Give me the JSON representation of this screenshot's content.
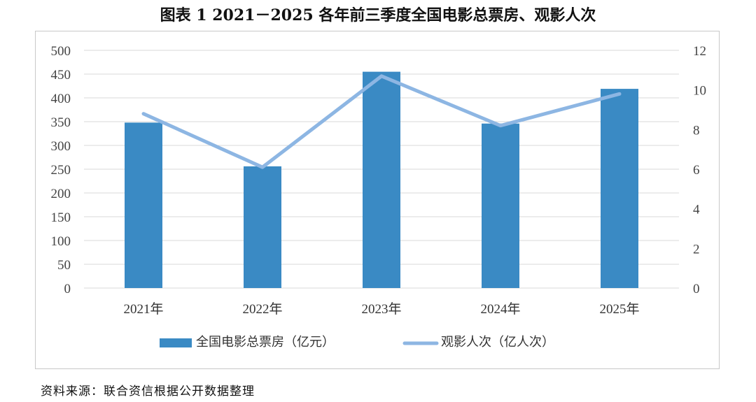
{
  "title": "图表 1    2021－2025 各年前三季度全国电影总票房、观影人次",
  "source": "资料来源：联合资信根据公开数据整理",
  "chart_data": {
    "type": "bar",
    "categories": [
      "2021年",
      "2022年",
      "2023年",
      "2024年",
      "2025年"
    ],
    "series": [
      {
        "name": "全国电影总票房（亿元）",
        "type": "bar",
        "axis": "left",
        "color": "#3A8AC4",
        "values": [
          348,
          256,
          455,
          346,
          419
        ]
      },
      {
        "name": "观影人次（亿人次）",
        "type": "line",
        "axis": "right",
        "color": "#8DB6E3",
        "values": [
          8.8,
          6.1,
          10.7,
          8.2,
          9.8
        ]
      }
    ],
    "ylim": [
      0,
      500
    ],
    "y_ticks": [
      "0",
      "50",
      "100",
      "150",
      "200",
      "250",
      "300",
      "350",
      "400",
      "450",
      "500"
    ],
    "y2lim": [
      0,
      12
    ],
    "y2_ticks": [
      "0",
      "2",
      "4",
      "6",
      "8",
      "10",
      "12"
    ],
    "grid": true,
    "legend_position": "bottom"
  }
}
